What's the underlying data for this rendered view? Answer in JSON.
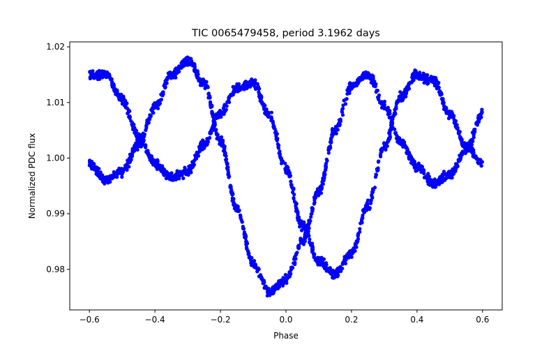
{
  "chart_data": {
    "type": "scatter",
    "title": "TIC 0065479458, period 3.1962 days",
    "xlabel": "Phase",
    "ylabel": "Normalized PDC flux",
    "xlim": [
      -0.66,
      0.66
    ],
    "ylim": [
      0.9727,
      1.0209
    ],
    "x_ticks": [
      -0.6,
      -0.4,
      -0.2,
      0.0,
      0.2,
      0.4,
      0.6
    ],
    "x_tick_labels": [
      "−0.6",
      "−0.4",
      "−0.2",
      "0.0",
      "0.2",
      "0.4",
      "0.6"
    ],
    "y_ticks": [
      0.98,
      0.99,
      1.0,
      1.01,
      1.02
    ],
    "y_tick_labels": [
      "0.98",
      "0.99",
      "1.00",
      "1.01",
      "1.02"
    ],
    "grid": false,
    "marker_color": "#0000ff",
    "series": [
      {
        "x": [
          -0.6,
          -0.55,
          -0.5,
          -0.45,
          -0.4,
          -0.35,
          -0.3,
          -0.25,
          -0.2,
          -0.15,
          -0.1,
          -0.05,
          0.0,
          0.05,
          0.1,
          0.15,
          0.2,
          0.25,
          0.3,
          0.35,
          0.4,
          0.45,
          0.5,
          0.55,
          0.6
        ],
        "y": [
          1.015,
          1.015,
          1.0105,
          1.004,
          0.999,
          0.9965,
          0.9975,
          1.0025,
          1.008,
          1.0125,
          1.0135,
          1.0075,
          0.998,
          0.988,
          0.9815,
          0.979,
          0.983,
          0.9915,
          1.002,
          1.011,
          1.015,
          1.014,
          1.008,
          1.002,
          0.999
        ]
      },
      {
        "x": [
          -0.6,
          -0.55,
          -0.5,
          -0.45,
          -0.4,
          -0.35,
          -0.3,
          -0.25,
          -0.2,
          -0.15,
          -0.1,
          -0.05,
          0.0,
          0.05,
          0.1,
          0.15,
          0.2,
          0.25,
          0.3,
          0.35,
          0.4,
          0.45,
          0.5,
          0.55,
          0.6
        ],
        "y": [
          0.999,
          0.996,
          0.9975,
          1.0025,
          1.009,
          1.015,
          1.0175,
          1.0135,
          1.003,
          0.991,
          0.981,
          0.976,
          0.978,
          0.985,
          0.994,
          1.005,
          1.013,
          1.015,
          1.0095,
          1.003,
          0.9985,
          0.9955,
          0.997,
          1.0015,
          1.008
        ]
      }
    ]
  }
}
